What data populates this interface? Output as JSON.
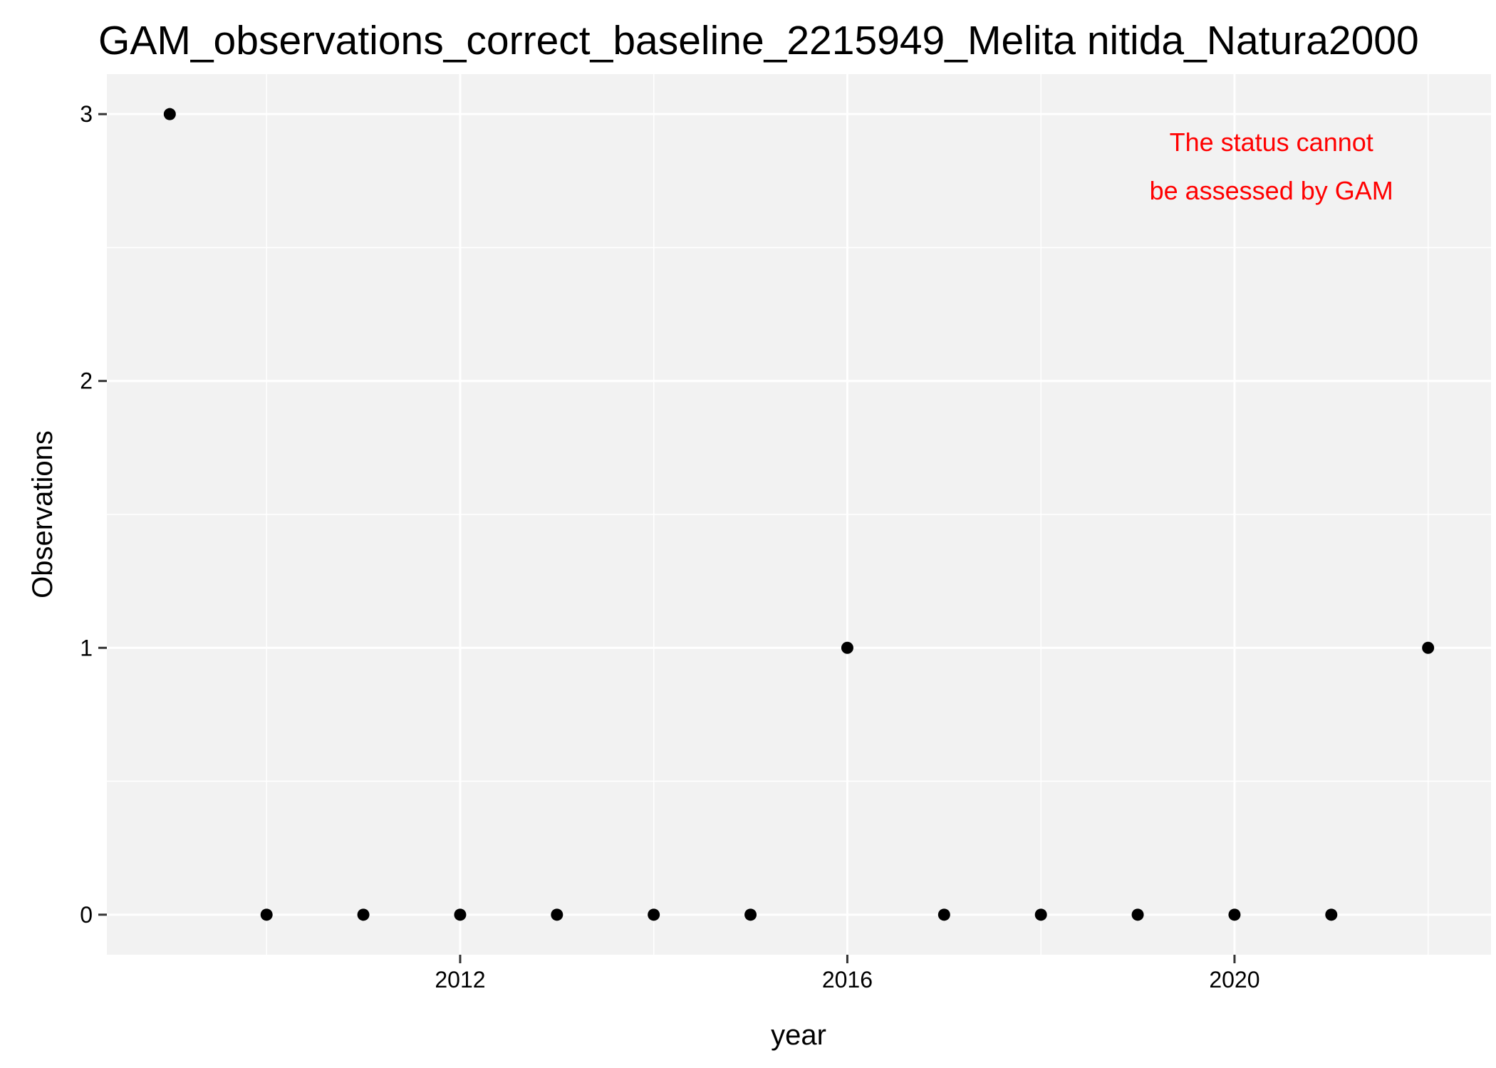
{
  "chart_data": {
    "type": "scatter",
    "title": "GAM_observations_correct_baseline_2215949_Melita nitida_Natura2000",
    "xlabel": "year",
    "ylabel": "Observations",
    "x": [
      2009,
      2010,
      2011,
      2012,
      2013,
      2014,
      2015,
      2016,
      2017,
      2018,
      2019,
      2020,
      2021,
      2022
    ],
    "y": [
      3,
      0,
      0,
      0,
      0,
      0,
      0,
      1,
      0,
      0,
      0,
      0,
      0,
      1
    ],
    "xlim": [
      2008.35,
      2022.65
    ],
    "ylim": [
      -0.15,
      3.15
    ],
    "x_ticks": [
      2012,
      2016,
      2020
    ],
    "x_minor_ticks": [
      2010,
      2014,
      2018,
      2022
    ],
    "y_ticks": [
      0,
      1,
      2,
      3
    ],
    "y_minor_ticks": [
      0.5,
      1.5,
      2.5
    ],
    "x_tick_labels": [
      "2012",
      "2016",
      "2020"
    ],
    "y_tick_labels": [
      "0",
      "1",
      "2",
      "3"
    ],
    "grid": true,
    "legend": "none",
    "annotation": {
      "lines": [
        "The status cannot",
        "be assessed by GAM"
      ],
      "color": "#ff0000",
      "anchor_x": 2022,
      "anchor_y": 2.75
    },
    "colors": {
      "panel_background": "#f2f2f2",
      "grid": "#ffffff",
      "point": "#000000"
    }
  }
}
